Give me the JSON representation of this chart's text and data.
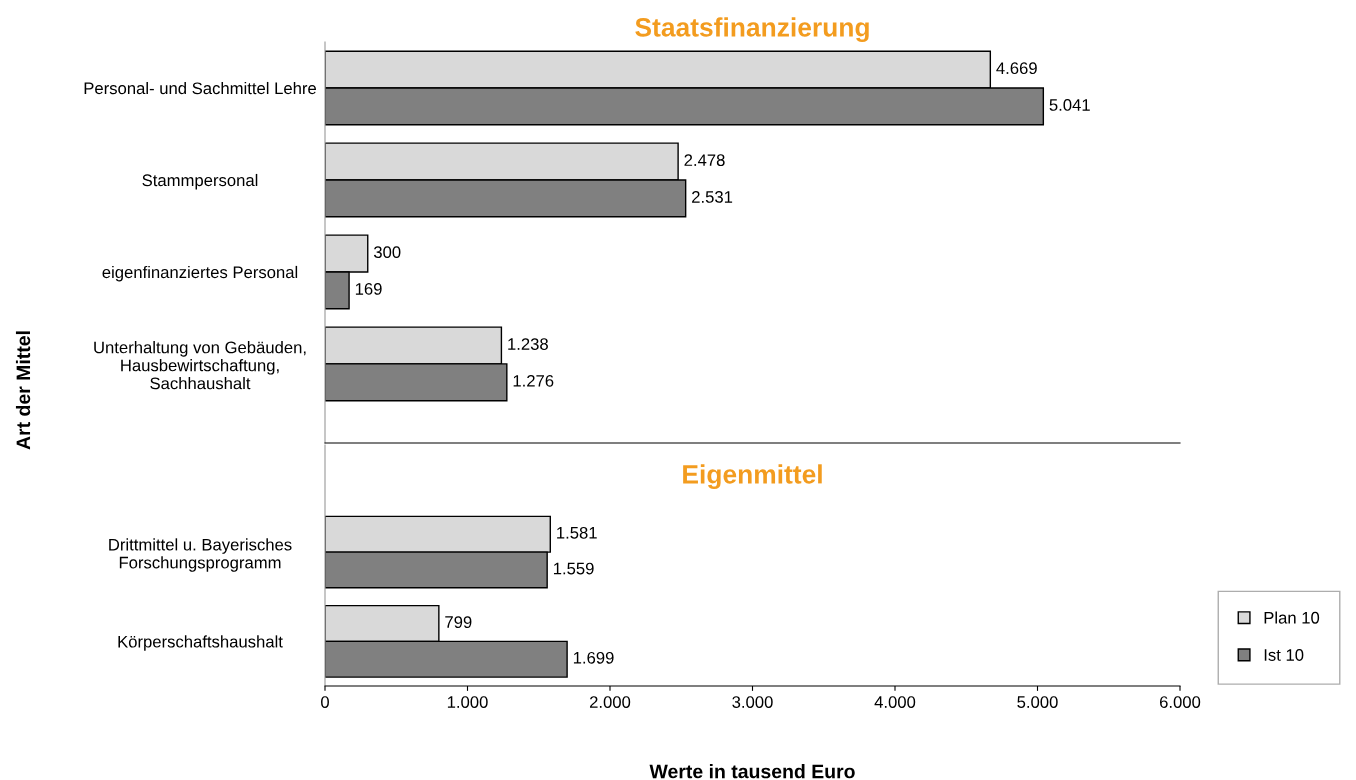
{
  "chart_data": [
    {
      "type": "bar",
      "orientation": "horizontal",
      "title": "Staatsfinanzierung",
      "ylabel": "Art der Mittel",
      "categories": [
        "Personal- und Sachmittel Lehre",
        "Stammpersonal",
        "eigenfinanziertes Personal",
        "Unterhaltung von Gebäuden,\nHausbewirtschaftung,\nSachhaushalt"
      ],
      "series": [
        {
          "color": "#d9d9d9",
          "values": [
            4669,
            2478,
            300,
            1238
          ],
          "value_labels": [
            "4.669",
            "2.478",
            "300",
            "1.238"
          ]
        },
        {
          "color": "#808080",
          "values": [
            5041,
            2531,
            169,
            1276
          ],
          "value_labels": [
            "5.041",
            "2.531",
            "169",
            "1.276"
          ]
        }
      ],
      "xlim": [
        0,
        6000
      ],
      "tick_labels": "y",
      "grid": false,
      "legend": false
    },
    {
      "type": "bar",
      "orientation": "horizontal",
      "title": "Eigenmittel",
      "xlabel": "Werte in tausend Euro",
      "categories": [
        "Drittmittel u. Bayerisches\nForschungsprogramm",
        "Körperschaftshaushalt"
      ],
      "series": [
        {
          "name": "Plan 10",
          "color": "#d9d9d9",
          "values": [
            1581,
            799
          ],
          "value_labels": [
            "1.581",
            "799"
          ]
        },
        {
          "name": "Ist 10",
          "color": "#808080",
          "values": [
            1559,
            1699
          ],
          "value_labels": [
            "1.559",
            "1.699"
          ]
        }
      ],
      "xlim": [
        0,
        6000
      ],
      "xticks": [
        {
          "value": 0,
          "label": "0"
        },
        {
          "value": 1000,
          "label": "1.000"
        },
        {
          "value": 2000,
          "label": "2.000"
        },
        {
          "value": 3000,
          "label": "3.000"
        },
        {
          "value": 4000,
          "label": "4.000"
        },
        {
          "value": 5000,
          "label": "5.000"
        },
        {
          "value": 6000,
          "label": "6.000"
        }
      ],
      "grid": false,
      "legend": "right"
    }
  ]
}
